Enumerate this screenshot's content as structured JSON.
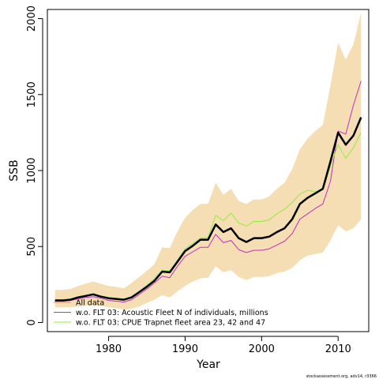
{
  "chart_data": {
    "type": "line",
    "title": "",
    "xlabel": "Year",
    "ylabel": "SSB",
    "xlim": [
      1972,
      2014
    ],
    "ylim": [
      -60,
      2060
    ],
    "x_ticks": [
      1980,
      1990,
      2000,
      2010
    ],
    "y_ticks": [
      0,
      500,
      1000,
      1500,
      2000
    ],
    "grid": false,
    "legend_position": "bottom-left",
    "x": [
      1973,
      1974,
      1975,
      1976,
      1977,
      1978,
      1979,
      1980,
      1981,
      1982,
      1983,
      1984,
      1985,
      1986,
      1987,
      1988,
      1989,
      1990,
      1991,
      1992,
      1993,
      1994,
      1995,
      1996,
      1997,
      1998,
      1999,
      2000,
      2001,
      2002,
      2003,
      2004,
      2005,
      2006,
      2007,
      2008,
      2009,
      2010,
      2011,
      2012,
      2013
    ],
    "band": {
      "color": "#f5deb3",
      "upper": [
        215,
        215,
        220,
        240,
        255,
        270,
        255,
        240,
        235,
        225,
        260,
        300,
        340,
        385,
        495,
        490,
        600,
        690,
        740,
        780,
        780,
        920,
        840,
        880,
        800,
        780,
        810,
        810,
        830,
        880,
        920,
        1010,
        1140,
        1210,
        1260,
        1300,
        1560,
        1840,
        1730,
        1830,
        2040
      ],
      "lower": [
        100,
        100,
        100,
        105,
        110,
        115,
        110,
        100,
        95,
        85,
        90,
        105,
        130,
        150,
        180,
        165,
        205,
        240,
        270,
        290,
        295,
        370,
        330,
        345,
        300,
        280,
        300,
        300,
        305,
        325,
        335,
        360,
        410,
        440,
        450,
        460,
        540,
        640,
        600,
        620,
        680
      ]
    },
    "series": [
      {
        "name": "All data",
        "color": "#000000",
        "values": [
          145,
          145,
          150,
          165,
          175,
          185,
          170,
          160,
          155,
          150,
          165,
          200,
          235,
          275,
          335,
          330,
          400,
          470,
          505,
          545,
          545,
          645,
          595,
          620,
          555,
          530,
          555,
          555,
          565,
          595,
          620,
          680,
          780,
          820,
          850,
          880,
          1060,
          1250,
          1170,
          1230,
          1350
        ]
      },
      {
        "name": "w.o. FLT 03: Acoustic Fleet   N of individuals, millions",
        "color": "#c12fc1",
        "values": [
          140,
          140,
          145,
          155,
          165,
          170,
          160,
          145,
          140,
          135,
          150,
          185,
          220,
          260,
          305,
          295,
          370,
          435,
          465,
          495,
          495,
          580,
          525,
          540,
          480,
          460,
          475,
          475,
          485,
          510,
          535,
          585,
          680,
          715,
          750,
          780,
          930,
          1260,
          1240,
          1430,
          1590
        ]
      },
      {
        "name": "w.o. FLT 03: CPUE Trapnet fleet area 23, 42 and 47",
        "color": "#90ee3a",
        "values": [
          150,
          150,
          155,
          170,
          180,
          190,
          175,
          165,
          160,
          155,
          170,
          205,
          245,
          290,
          345,
          340,
          410,
          485,
          520,
          555,
          560,
          705,
          670,
          720,
          655,
          635,
          665,
          665,
          675,
          715,
          745,
          790,
          845,
          870,
          860,
          875,
          1030,
          1170,
          1080,
          1150,
          1250
        ]
      }
    ]
  },
  "legend": {
    "items": [
      {
        "label": "All data",
        "color": "#e5827d"
      },
      {
        "label": "w.o. FLT 03: Acoustic Fleet   N of individuals, millions",
        "color": "#c12fc1"
      },
      {
        "label": "w.o. FLT 03: CPUE Trapnet fleet area 23, 42 and 47",
        "color": "#90ee3a"
      }
    ]
  },
  "source_note": "stockassessment.org, adv14, r3366"
}
